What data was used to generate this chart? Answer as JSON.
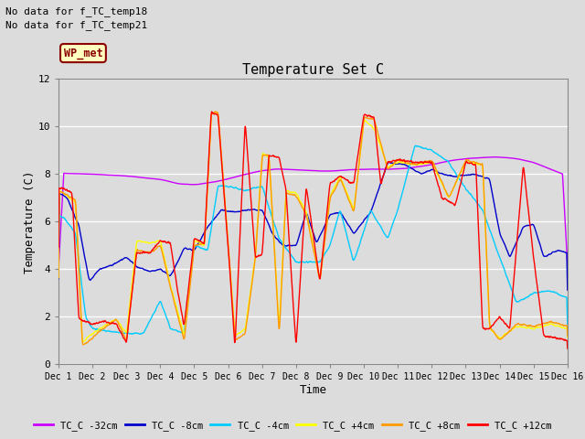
{
  "title": "Temperature Set C",
  "xlabel": "Time",
  "ylabel": "Temperature (C)",
  "no_data_text": [
    "No data for f_TC_temp18",
    "No data for f_TC_temp21"
  ],
  "wp_met_label": "WP_met",
  "ylim": [
    0,
    12
  ],
  "xlim": [
    0,
    15
  ],
  "xtick_labels": [
    "Dec 1",
    "Dec 2",
    "Dec 3",
    "Dec 4",
    "Dec 5",
    "Dec 6",
    "Dec 7",
    "Dec 8",
    "Dec 9",
    "Dec 10",
    "Dec 11",
    "Dec 12",
    "Dec 13",
    "Dec 14",
    "Dec 15",
    "Dec 16"
  ],
  "ytick_labels": [
    "0",
    "2",
    "4",
    "6",
    "8",
    "10",
    "12"
  ],
  "legend_entries": [
    "TC_C -32cm",
    "TC_C -8cm",
    "TC_C -4cm",
    "TC_C +4cm",
    "TC_C +8cm",
    "TC_C +12cm"
  ],
  "line_colors": [
    "#cc00ff",
    "#0000cc",
    "#00ccff",
    "#ffff00",
    "#ff9900",
    "#ff0000"
  ],
  "background_color": "#dcdcdc",
  "plot_bg_color": "#dcdcdc",
  "grid_color": "#ffffff",
  "fig_bg": "#dcdcdc"
}
